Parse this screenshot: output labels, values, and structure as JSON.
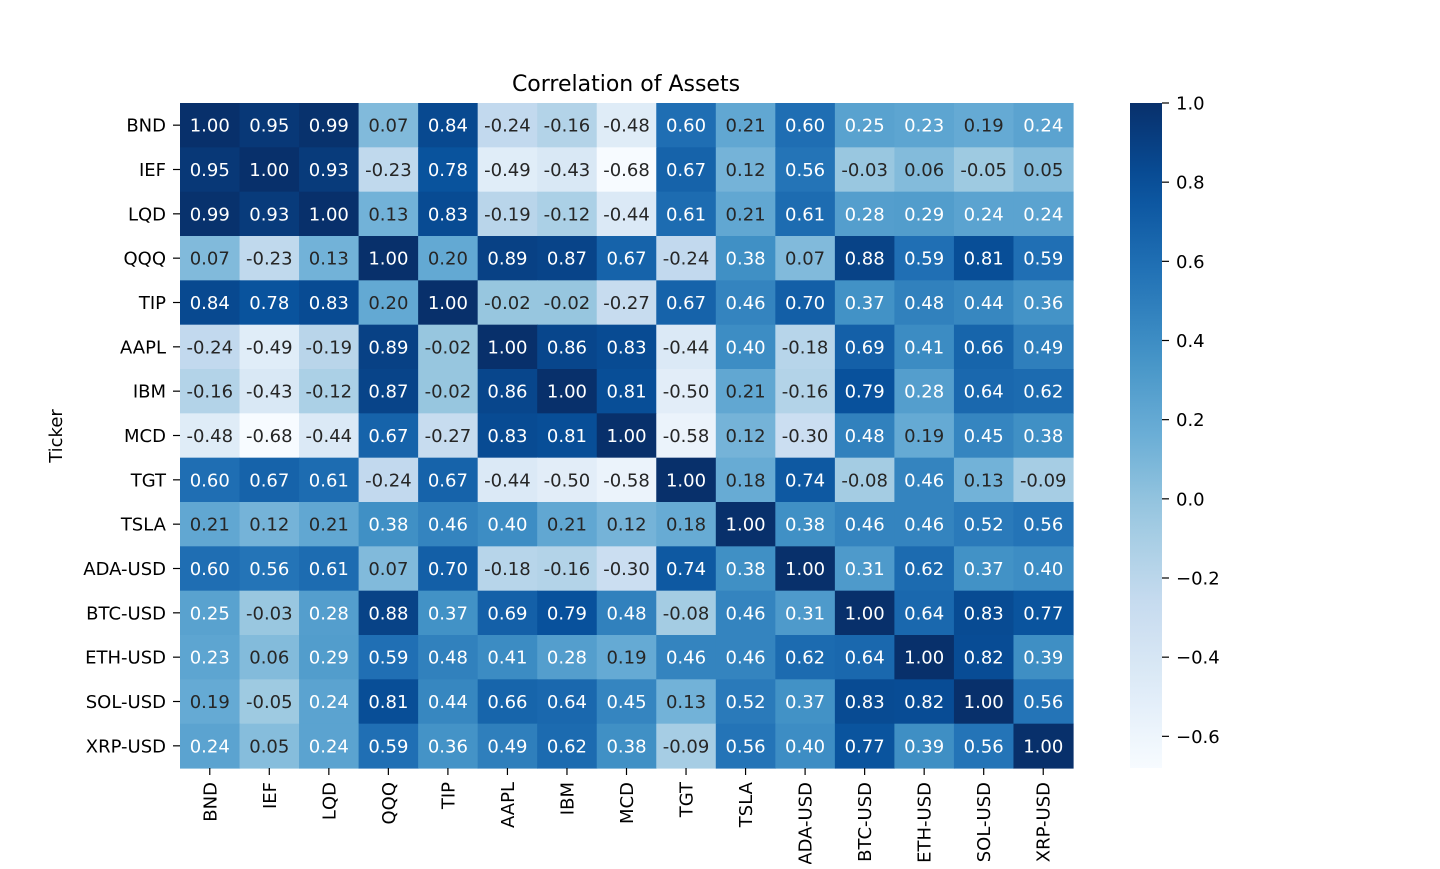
{
  "chart_data": {
    "type": "heatmap",
    "title": "Correlation of Assets",
    "ylabel": "Ticker",
    "xlabel": "",
    "rows": [
      "BND",
      "IEF",
      "LQD",
      "QQQ",
      "TIP",
      "AAPL",
      "IBM",
      "MCD",
      "TGT",
      "TSLA",
      "ADA-USD",
      "BTC-USD",
      "ETH-USD",
      "SOL-USD",
      "XRP-USD"
    ],
    "cols": [
      "BND",
      "IEF",
      "LQD",
      "QQQ",
      "TIP",
      "AAPL",
      "IBM",
      "MCD",
      "TGT",
      "TSLA",
      "ADA-USD",
      "BTC-USD",
      "ETH-USD",
      "SOL-USD",
      "XRP-USD"
    ],
    "values": [
      [
        1.0,
        0.95,
        0.99,
        0.07,
        0.84,
        -0.24,
        -0.16,
        -0.48,
        0.6,
        0.21,
        0.6,
        0.25,
        0.23,
        0.19,
        0.24
      ],
      [
        0.95,
        1.0,
        0.93,
        -0.23,
        0.78,
        -0.49,
        -0.43,
        -0.68,
        0.67,
        0.12,
        0.56,
        -0.03,
        0.06,
        -0.05,
        0.05
      ],
      [
        0.99,
        0.93,
        1.0,
        0.13,
        0.83,
        -0.19,
        -0.12,
        -0.44,
        0.61,
        0.21,
        0.61,
        0.28,
        0.29,
        0.24,
        0.24
      ],
      [
        0.07,
        -0.23,
        0.13,
        1.0,
        0.2,
        0.89,
        0.87,
        0.67,
        -0.24,
        0.38,
        0.07,
        0.88,
        0.59,
        0.81,
        0.59
      ],
      [
        0.84,
        0.78,
        0.83,
        0.2,
        1.0,
        -0.02,
        -0.02,
        -0.27,
        0.67,
        0.46,
        0.7,
        0.37,
        0.48,
        0.44,
        0.36
      ],
      [
        -0.24,
        -0.49,
        -0.19,
        0.89,
        -0.02,
        1.0,
        0.86,
        0.83,
        -0.44,
        0.4,
        -0.18,
        0.69,
        0.41,
        0.66,
        0.49
      ],
      [
        -0.16,
        -0.43,
        -0.12,
        0.87,
        -0.02,
        0.86,
        1.0,
        0.81,
        -0.5,
        0.21,
        -0.16,
        0.79,
        0.28,
        0.64,
        0.62
      ],
      [
        -0.48,
        -0.68,
        -0.44,
        0.67,
        -0.27,
        0.83,
        0.81,
        1.0,
        -0.58,
        0.12,
        -0.3,
        0.48,
        0.19,
        0.45,
        0.38
      ],
      [
        0.6,
        0.67,
        0.61,
        -0.24,
        0.67,
        -0.44,
        -0.5,
        -0.58,
        1.0,
        0.18,
        0.74,
        -0.08,
        0.46,
        0.13,
        -0.09
      ],
      [
        0.21,
        0.12,
        0.21,
        0.38,
        0.46,
        0.4,
        0.21,
        0.12,
        0.18,
        1.0,
        0.38,
        0.46,
        0.46,
        0.52,
        0.56
      ],
      [
        0.6,
        0.56,
        0.61,
        0.07,
        0.7,
        -0.18,
        -0.16,
        -0.3,
        0.74,
        0.38,
        1.0,
        0.31,
        0.62,
        0.37,
        0.4
      ],
      [
        0.25,
        -0.03,
        0.28,
        0.88,
        0.37,
        0.69,
        0.79,
        0.48,
        -0.08,
        0.46,
        0.31,
        1.0,
        0.64,
        0.83,
        0.77
      ],
      [
        0.23,
        0.06,
        0.29,
        0.59,
        0.48,
        0.41,
        0.28,
        0.19,
        0.46,
        0.46,
        0.62,
        0.64,
        1.0,
        0.82,
        0.39
      ],
      [
        0.19,
        -0.05,
        0.24,
        0.81,
        0.44,
        0.66,
        0.64,
        0.45,
        0.13,
        0.52,
        0.37,
        0.83,
        0.82,
        1.0,
        0.56
      ],
      [
        0.24,
        0.05,
        0.24,
        0.59,
        0.36,
        0.49,
        0.62,
        0.38,
        -0.09,
        0.56,
        0.4,
        0.77,
        0.39,
        0.56,
        1.0
      ]
    ],
    "colorbar": {
      "colormap": "Blues",
      "range": [
        -0.68,
        1.0
      ],
      "ticks": [
        1.0,
        0.8,
        0.6,
        0.4,
        0.2,
        0.0,
        -0.2,
        -0.4,
        -0.6
      ],
      "tick_labels": [
        "1.0",
        "0.8",
        "0.6",
        "0.4",
        "0.2",
        "0.0",
        "−0.2",
        "−0.4",
        "−0.6"
      ]
    },
    "grid": false,
    "legend": "colorbar-right"
  }
}
